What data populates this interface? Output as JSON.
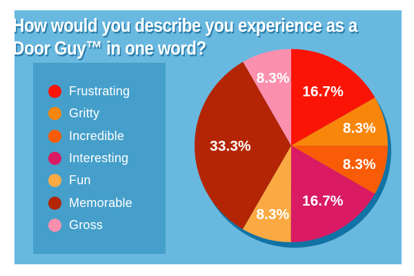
{
  "page": {
    "background_color": "#ffffff",
    "canvas_color": "#69b8df",
    "panel_color": "#459fca",
    "title_color": "#ffffff",
    "title_shadow_color": "#2a7dad",
    "pie_shadow_color": "#1173a5",
    "label_text_color": "#ffffff"
  },
  "title": {
    "line1": "How would you describe you experience as a",
    "line2": "Door Guy™ in one word?"
  },
  "chart_data": {
    "type": "pie",
    "title": "How would you describe you experience as a Door Guy™ in one word?",
    "legend_position": "left",
    "start_angle": "12 o'clock, clockwise",
    "slices": [
      {
        "label": "Frustrating",
        "value": 16.7,
        "display": "16.7%",
        "color": "#fa1405"
      },
      {
        "label": "Gritty",
        "value": 8.3,
        "display": "8.3%",
        "color": "#f8860b"
      },
      {
        "label": "Incredible",
        "value": 8.3,
        "display": "8.3%",
        "color": "#f95c07"
      },
      {
        "label": "Interesting",
        "value": 16.7,
        "display": "16.7%",
        "color": "#da1a63"
      },
      {
        "label": "Fun",
        "value": 8.3,
        "display": "8.3%",
        "color": "#fbaa43"
      },
      {
        "label": "Memorable",
        "value": 33.3,
        "display": "33.3%",
        "color": "#b32505"
      },
      {
        "label": "Gross",
        "value": 8.3,
        "display": "8.3%",
        "color": "#fb90ae"
      }
    ]
  }
}
